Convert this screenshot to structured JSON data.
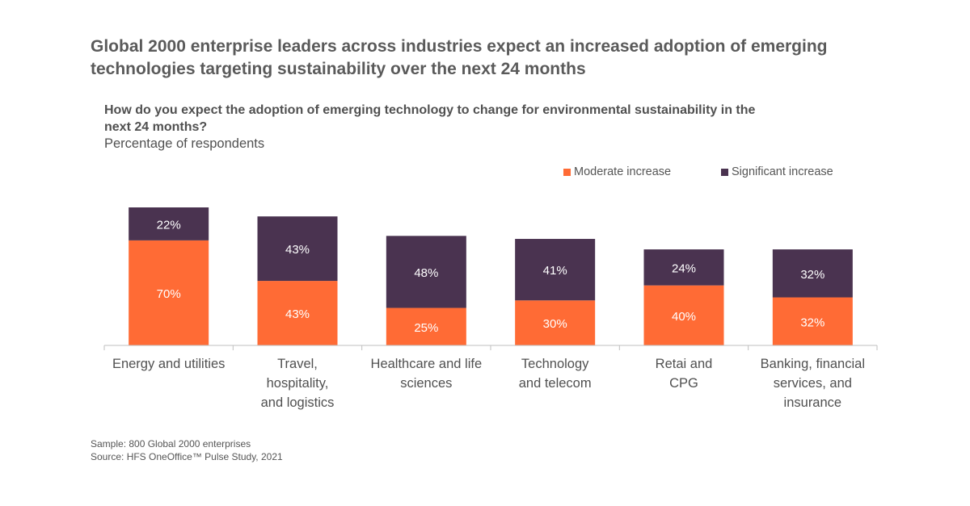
{
  "headline": "Global 2000 enterprise leaders across industries expect an increased adoption of emerging technologies targeting sustainability over the next 24 months",
  "question": "How do you expect the adoption of emerging technology to change for environmental sustainability in the next 24 months?",
  "unit_label": "Percentage of respondents",
  "legend": {
    "moderate": "Moderate increase",
    "significant": "Significant increase"
  },
  "colors": {
    "moderate": "#FF6B35",
    "significant": "#4A3350",
    "axis": "#bfbfbf"
  },
  "chart_data": {
    "type": "bar",
    "stacked": true,
    "categories": [
      [
        "Energy and utilities"
      ],
      [
        "Travel,",
        "hospitality,",
        "and logistics"
      ],
      [
        "Healthcare and life",
        "sciences"
      ],
      [
        "Technology",
        "and telecom"
      ],
      [
        "Retai and",
        "CPG"
      ],
      [
        "Banking, financial",
        "services, and",
        "insurance"
      ]
    ],
    "series": [
      {
        "name": "Moderate increase",
        "values": [
          70,
          43,
          25,
          30,
          40,
          32
        ]
      },
      {
        "name": "Significant increase",
        "values": [
          22,
          43,
          48,
          41,
          24,
          32
        ]
      }
    ],
    "data_labels": [
      [
        "70%",
        "43%",
        "25%",
        "30%",
        "40%",
        "32%"
      ],
      [
        "22%",
        "43%",
        "48%",
        "41%",
        "24%",
        "32%"
      ]
    ],
    "ylim": [
      0,
      92
    ],
    "grid": false,
    "legend_position": "top-right"
  },
  "footer": {
    "sample": "Sample: 800 Global 2000 enterprises",
    "source": "Source: HFS OneOffice™ Pulse Study, 2021"
  }
}
